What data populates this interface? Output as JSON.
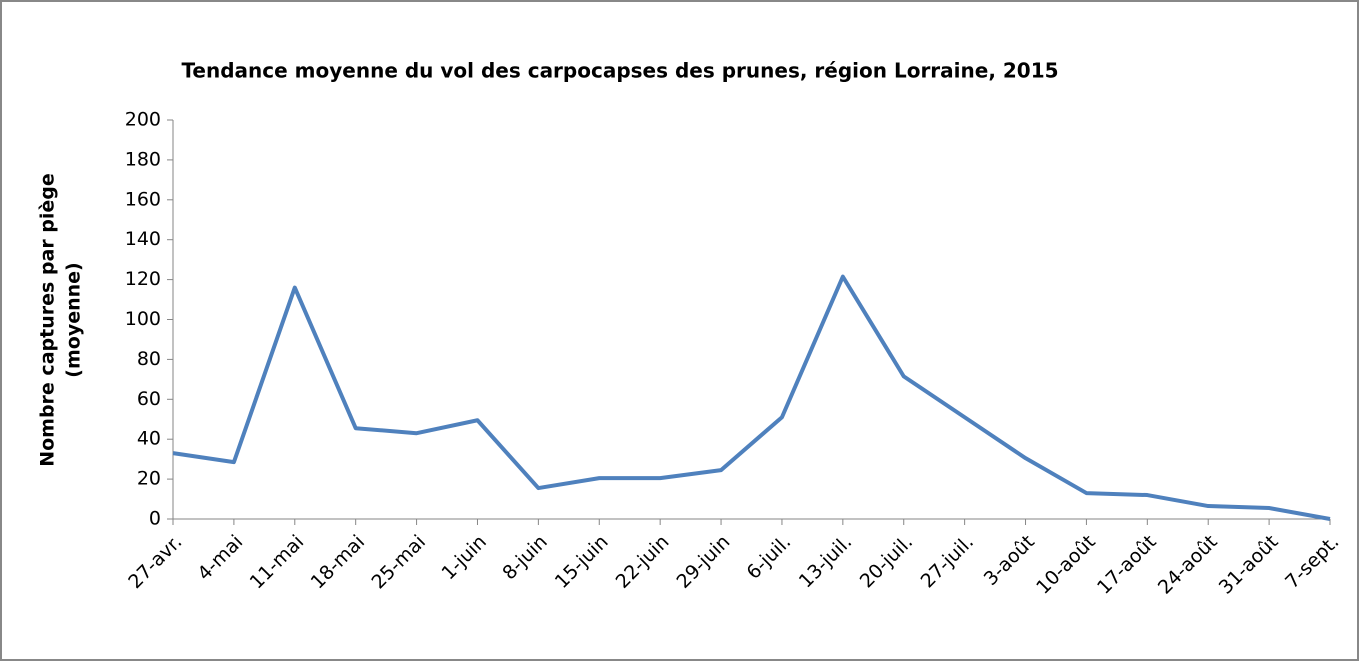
{
  "chart_data": {
    "type": "line",
    "title": "Tendance moyenne du vol des carpocapses des prunes, région Lorraine, 2015",
    "y_label": [
      "Nombre captures par piège",
      "(moyenne)"
    ],
    "categories": [
      "27-avr.",
      "4-mai",
      "11-mai",
      "18-mai",
      "25-mai",
      "1-juin",
      "8-juin",
      "15-juin",
      "22-juin",
      "29-juin",
      "6-juil.",
      "13-juil.",
      "20-juil.",
      "27-juil.",
      "3-août",
      "10-août",
      "17-août",
      "24-août",
      "31-août",
      "7-sept."
    ],
    "series": [
      {
        "color": "#4f81bd",
        "values": [
          33,
          28.5,
          116,
          45.5,
          43,
          49.5,
          15.5,
          20.5,
          20.5,
          24.5,
          51,
          121.5,
          71.5,
          51,
          30.5,
          13,
          12,
          6.5,
          5.5,
          0
        ]
      }
    ],
    "ylim": [
      0,
      200
    ],
    "yticks": [
      0,
      20,
      40,
      60,
      80,
      100,
      120,
      140,
      160,
      180,
      200
    ],
    "grid": false
  }
}
